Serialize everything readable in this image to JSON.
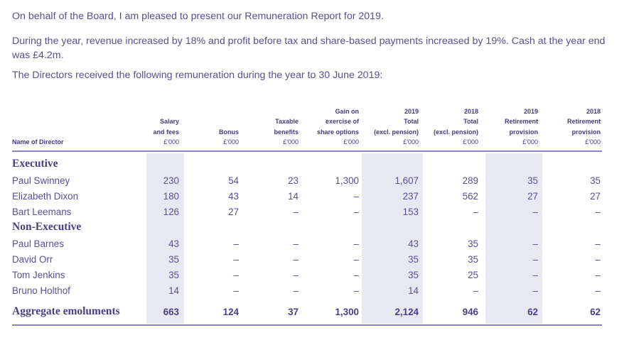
{
  "intro": {
    "p1": "On behalf of the Board, I am pleased to present our Remuneration Report for 2019.",
    "p2": "During the year, revenue increased by 18% and profit before tax and share-based payments increased by 19%. Cash at the year end was £4.2m.",
    "p3": "The Directors received the following remuneration during the year to 30 June 2019:"
  },
  "table": {
    "name_header": "Name of Director",
    "columns": [
      {
        "lines": [
          "Salary",
          "and fees"
        ],
        "unit": "£'000"
      },
      {
        "lines": [
          "Bonus"
        ],
        "unit": "£'000"
      },
      {
        "lines": [
          "Taxable",
          "benefits"
        ],
        "unit": "£'000"
      },
      {
        "lines": [
          "Gain on",
          "exercise of",
          "share options"
        ],
        "unit": "£'000"
      },
      {
        "lines": [
          "2019",
          "Total",
          "(excl. pension)"
        ],
        "unit": "£'000"
      },
      {
        "lines": [
          "2018",
          "Total",
          "(excl. pension)"
        ],
        "unit": "£'000"
      },
      {
        "lines": [
          "2019",
          "Retirement",
          "provision"
        ],
        "unit": "£'000"
      },
      {
        "lines": [
          "2018",
          "Retirement",
          "provision"
        ],
        "unit": "£'000"
      }
    ],
    "sections": {
      "executive": "Executive",
      "non_executive": "Non-Executive"
    },
    "rows": [
      {
        "name": "Paul Swinney",
        "values": [
          "230",
          "54",
          "23",
          "1,300",
          "1,607",
          "289",
          "35",
          "35"
        ]
      },
      {
        "name": "Elizabeth Dixon",
        "values": [
          "180",
          "43",
          "14",
          "–",
          "237",
          "562",
          "27",
          "27"
        ]
      },
      {
        "name": "Bart Leemans",
        "values": [
          "126",
          "27",
          "–",
          "–",
          "153",
          "–",
          "–",
          "–"
        ]
      },
      {
        "name": "Paul Barnes",
        "values": [
          "43",
          "–",
          "–",
          "–",
          "43",
          "35",
          "–",
          "–"
        ]
      },
      {
        "name": "David Orr",
        "values": [
          "35",
          "–",
          "–",
          "–",
          "35",
          "35",
          "–",
          "–"
        ]
      },
      {
        "name": "Tom Jenkins",
        "values": [
          "35",
          "–",
          "–",
          "–",
          "35",
          "25",
          "–",
          "–"
        ]
      },
      {
        "name": "Bruno Holthof",
        "values": [
          "14",
          "–",
          "–",
          "–",
          "14",
          "–",
          "–",
          "–"
        ]
      }
    ],
    "aggregate": {
      "label": "Aggregate emoluments",
      "values": [
        "663",
        "124",
        "37",
        "1,300",
        "2,124",
        "946",
        "62",
        "62"
      ]
    }
  }
}
